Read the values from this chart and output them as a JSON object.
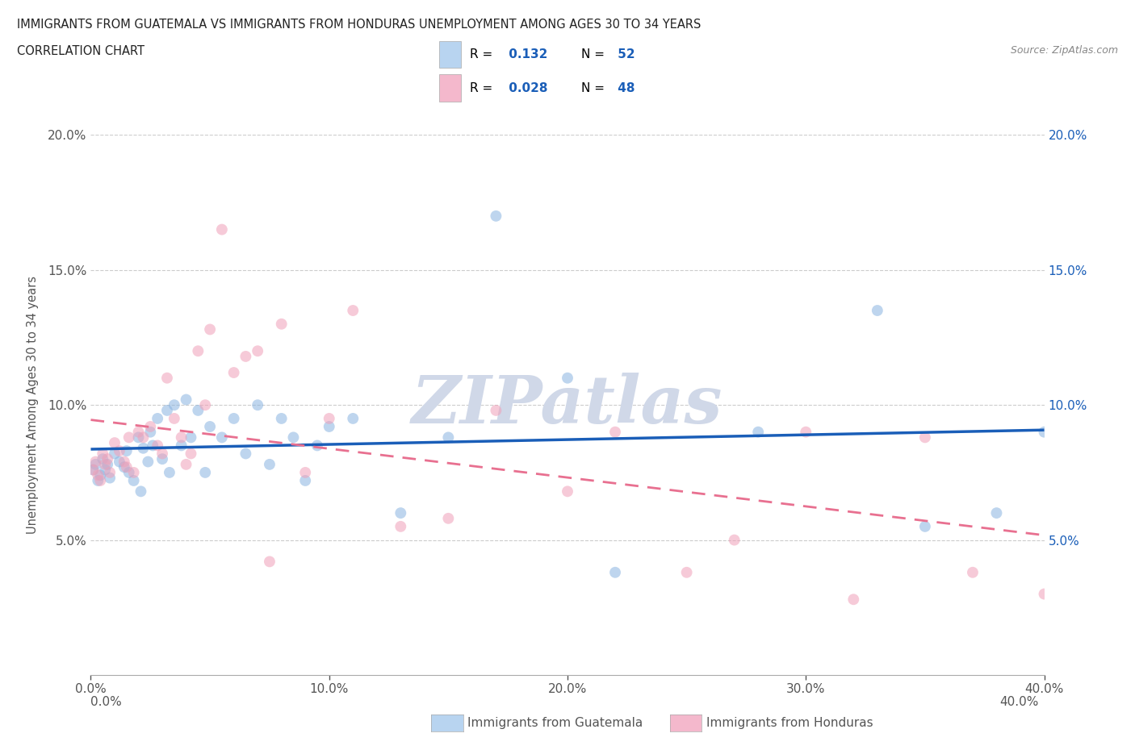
{
  "title_line1": "IMMIGRANTS FROM GUATEMALA VS IMMIGRANTS FROM HONDURAS UNEMPLOYMENT AMONG AGES 30 TO 34 YEARS",
  "title_line2": "CORRELATION CHART",
  "source": "Source: ZipAtlas.com",
  "ylabel": "Unemployment Among Ages 30 to 34 years",
  "xlim": [
    0.0,
    0.4
  ],
  "ylim": [
    0.0,
    0.2
  ],
  "xticks": [
    0.0,
    0.1,
    0.2,
    0.3,
    0.4
  ],
  "yticks": [
    0.05,
    0.1,
    0.15,
    0.2
  ],
  "watermark_text": "ZIPatlas",
  "r_guatemala": 0.132,
  "n_guatemala": 52,
  "r_honduras": 0.028,
  "n_honduras": 48,
  "guatemala_label": "Immigrants from Guatemala",
  "honduras_label": "Immigrants from Honduras",
  "guatemala_scatter_color": "#8ab4e0",
  "honduras_scatter_color": "#f0a0b8",
  "guatemala_line_color": "#1a5eb8",
  "honduras_line_color": "#e87090",
  "guatemala_legend_color": "#b8d4f0",
  "honduras_legend_color": "#f4b8cc",
  "legend_text_color": "#1a5eb8",
  "bg_color": "#ffffff",
  "grid_color": "#cccccc",
  "tick_color": "#555555",
  "right_tick_color": "#1a5eb8",
  "title_color": "#222222",
  "source_color": "#888888",
  "watermark_color": "#d0d8e8",
  "scatter_alpha": 0.55,
  "scatter_size": 100,
  "guatemala_x": [
    0.001,
    0.002,
    0.003,
    0.004,
    0.005,
    0.006,
    0.007,
    0.008,
    0.01,
    0.012,
    0.014,
    0.015,
    0.016,
    0.018,
    0.02,
    0.021,
    0.022,
    0.024,
    0.025,
    0.026,
    0.028,
    0.03,
    0.032,
    0.033,
    0.035,
    0.038,
    0.04,
    0.042,
    0.045,
    0.048,
    0.05,
    0.055,
    0.06,
    0.065,
    0.07,
    0.075,
    0.08,
    0.085,
    0.09,
    0.095,
    0.1,
    0.11,
    0.13,
    0.15,
    0.17,
    0.2,
    0.22,
    0.28,
    0.33,
    0.35,
    0.38,
    0.4
  ],
  "guatemala_y": [
    0.076,
    0.078,
    0.072,
    0.074,
    0.08,
    0.076,
    0.078,
    0.073,
    0.082,
    0.079,
    0.077,
    0.083,
    0.075,
    0.072,
    0.088,
    0.068,
    0.084,
    0.079,
    0.09,
    0.085,
    0.095,
    0.08,
    0.098,
    0.075,
    0.1,
    0.085,
    0.102,
    0.088,
    0.098,
    0.075,
    0.092,
    0.088,
    0.095,
    0.082,
    0.1,
    0.078,
    0.095,
    0.088,
    0.072,
    0.085,
    0.092,
    0.095,
    0.06,
    0.088,
    0.17,
    0.11,
    0.038,
    0.09,
    0.135,
    0.055,
    0.06,
    0.09
  ],
  "honduras_x": [
    0.001,
    0.002,
    0.003,
    0.004,
    0.005,
    0.006,
    0.007,
    0.008,
    0.01,
    0.012,
    0.014,
    0.015,
    0.016,
    0.018,
    0.02,
    0.022,
    0.025,
    0.028,
    0.03,
    0.032,
    0.035,
    0.038,
    0.04,
    0.042,
    0.045,
    0.048,
    0.05,
    0.055,
    0.06,
    0.065,
    0.07,
    0.075,
    0.08,
    0.09,
    0.1,
    0.11,
    0.13,
    0.15,
    0.17,
    0.2,
    0.22,
    0.25,
    0.27,
    0.3,
    0.32,
    0.35,
    0.37,
    0.4
  ],
  "honduras_y": [
    0.076,
    0.079,
    0.074,
    0.072,
    0.082,
    0.078,
    0.08,
    0.075,
    0.086,
    0.083,
    0.079,
    0.077,
    0.088,
    0.075,
    0.09,
    0.088,
    0.092,
    0.085,
    0.082,
    0.11,
    0.095,
    0.088,
    0.078,
    0.082,
    0.12,
    0.1,
    0.128,
    0.165,
    0.112,
    0.118,
    0.12,
    0.042,
    0.13,
    0.075,
    0.095,
    0.135,
    0.055,
    0.058,
    0.098,
    0.068,
    0.09,
    0.038,
    0.05,
    0.09,
    0.028,
    0.088,
    0.038,
    0.03
  ]
}
